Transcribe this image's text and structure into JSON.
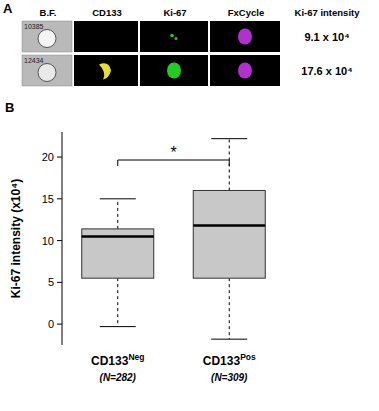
{
  "chart_data": {
    "type": "box",
    "panel_label": "B",
    "ylabel": "Ki-67 intensity (x10⁴)",
    "ylim": [
      -2.5,
      23
    ],
    "yticks": [
      0,
      5,
      10,
      15,
      20
    ],
    "grid": false,
    "color": "#c8c8c8",
    "groups": [
      {
        "name": "CD133",
        "superscript": "Neg",
        "n_label": "(N=282)",
        "min": -0.3,
        "q1": 5.5,
        "median": 10.5,
        "q3": 11.4,
        "max": 15
      },
      {
        "name": "CD133",
        "superscript": "Pos",
        "n_label": "(N=309)",
        "min": -1.8,
        "q1": 5.5,
        "median": 11.8,
        "q3": 16,
        "max": 22.2
      }
    ],
    "annotation": "*"
  },
  "image_panel": {
    "panel_label": "A",
    "columns": [
      "B.F.",
      "CD133",
      "Ki-67",
      "FxCycle",
      "Ki-67 intensity"
    ],
    "rows": [
      {
        "id": "10385",
        "intensity": "9.1 x 10⁴"
      },
      {
        "id": "12434",
        "intensity": "17.6 x 10⁴"
      }
    ]
  }
}
